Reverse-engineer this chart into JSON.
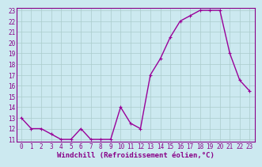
{
  "x": [
    0,
    1,
    2,
    3,
    4,
    5,
    6,
    7,
    8,
    9,
    10,
    11,
    12,
    13,
    14,
    15,
    16,
    17,
    18,
    19,
    20,
    21,
    22,
    23
  ],
  "y": [
    13,
    12,
    12,
    11.5,
    11,
    11,
    12,
    11,
    11,
    11,
    14,
    12.5,
    12,
    17,
    18.5,
    20.5,
    22,
    22.5,
    23,
    23,
    23,
    19,
    16.5,
    15.5
  ],
  "line_color": "#990099",
  "marker": "+",
  "bg_color": "#cce9f0",
  "grid_color": "#aacccc",
  "xlabel": "Windchill (Refroidissement éolien,°C)",
  "ylim_min": 11,
  "ylim_max": 23,
  "xlim_min": -0.5,
  "xlim_max": 23.5,
  "yticks": [
    11,
    12,
    13,
    14,
    15,
    16,
    17,
    18,
    19,
    20,
    21,
    22,
    23
  ],
  "xticks": [
    0,
    1,
    2,
    3,
    4,
    5,
    6,
    7,
    8,
    9,
    10,
    11,
    12,
    13,
    14,
    15,
    16,
    17,
    18,
    19,
    20,
    21,
    22,
    23
  ],
  "font_color": "#880088",
  "tick_fontsize": 5.5,
  "xlabel_fontsize": 6.5,
  "linewidth": 1.0,
  "markersize": 3.5
}
